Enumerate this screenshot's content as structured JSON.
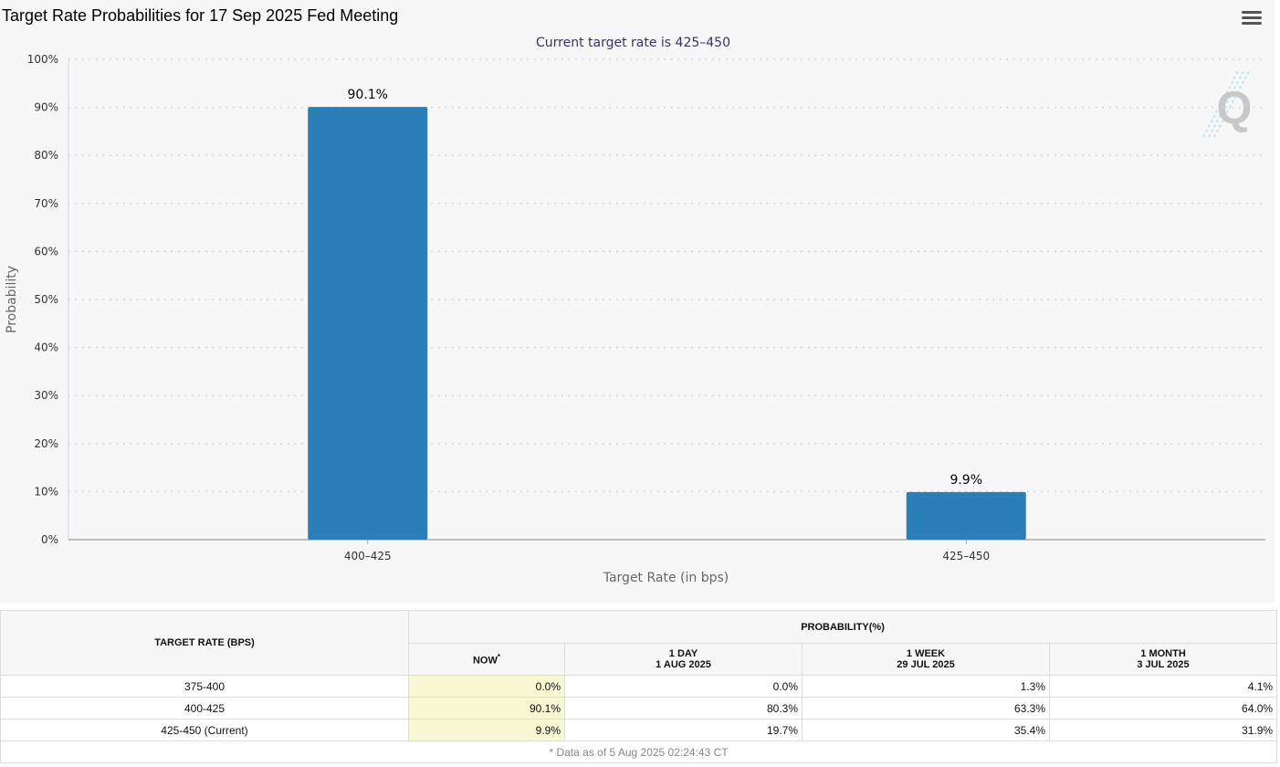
{
  "chart": {
    "title": "Target Rate Probabilities for 17 Sep 2025 Fed Meeting",
    "subtitle": "Current target rate is 425–450",
    "menu_icon": "hamburger-menu-icon",
    "watermark_icon": "q-logo-icon",
    "bar_color": "#2b7fb8"
  },
  "chart_data": {
    "type": "bar",
    "title": "Target Rate Probabilities for 17 Sep 2025 Fed Meeting",
    "subtitle": "Current target rate is 425–450",
    "categories": [
      "400–425",
      "425–450"
    ],
    "values": [
      90.1,
      9.9
    ],
    "data_labels": [
      "90.1%",
      "9.9%"
    ],
    "xlabel": "Target Rate (in bps)",
    "ylabel": "Probability",
    "ylim": [
      0,
      100
    ],
    "yticks": [
      "0%",
      "10%",
      "20%",
      "30%",
      "40%",
      "50%",
      "60%",
      "70%",
      "80%",
      "90%",
      "100%"
    ],
    "grid": true,
    "legend": "none"
  },
  "table": {
    "col_target_rate": "TARGET RATE (BPS)",
    "col_probability": "PROBABILITY(%)",
    "col_now": "NOW",
    "col_now_mark": "*",
    "col_1day": "1 DAY",
    "col_1day_date": "1 AUG 2025",
    "col_1week": "1 WEEK",
    "col_1week_date": "29 JUL 2025",
    "col_1month": "1 MONTH",
    "col_1month_date": "3 JUL 2025",
    "rows": [
      {
        "rate": "375-400",
        "now": "0.0%",
        "day": "0.0%",
        "week": "1.3%",
        "month": "4.1%"
      },
      {
        "rate": "400-425",
        "now": "90.1%",
        "day": "80.3%",
        "week": "63.3%",
        "month": "64.0%"
      },
      {
        "rate": "425-450 (Current)",
        "now": "9.9%",
        "day": "19.7%",
        "week": "35.4%",
        "month": "31.9%"
      }
    ],
    "footnote": "* Data as of 5 Aug 2025 02:24:43 CT"
  }
}
